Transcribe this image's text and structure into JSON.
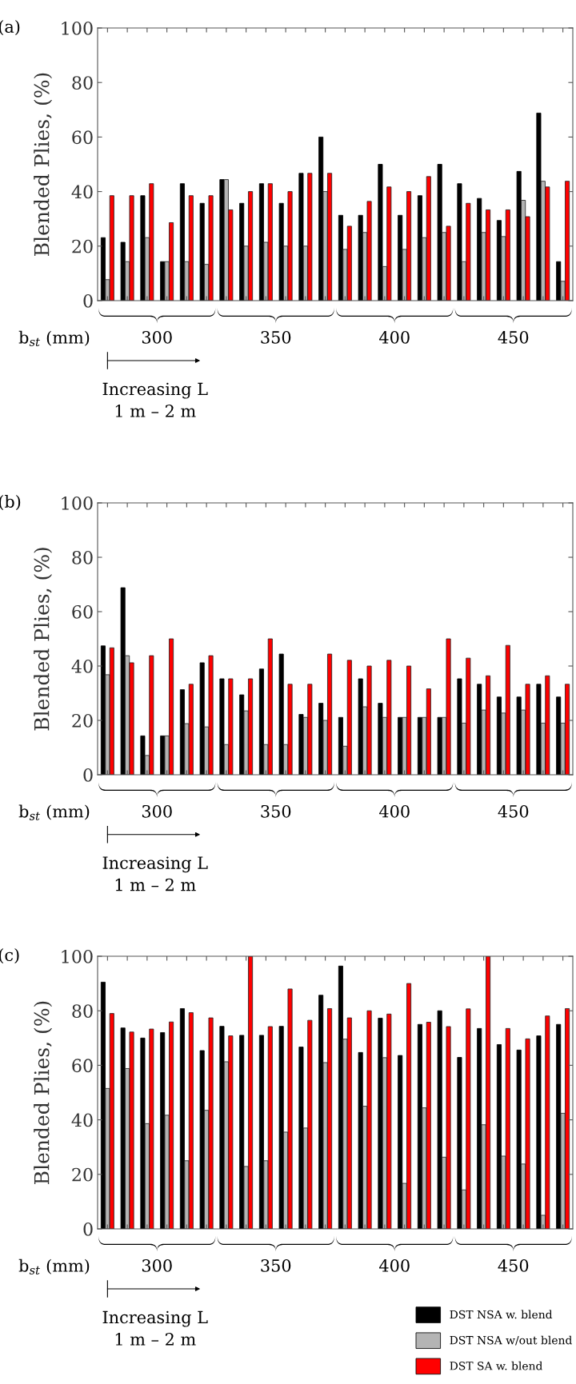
{
  "chart_data": [
    {
      "type": "bar",
      "title": "(a)",
      "ylabel": "Blended Plies, (%)",
      "categories": [
        null,
        null,
        null,
        null,
        null,
        null,
        null,
        null,
        null,
        null,
        null,
        null,
        null,
        null,
        null,
        null,
        null,
        null,
        null,
        null,
        null,
        null,
        null,
        null
      ],
      "series": [
        {
          "color": "#000000",
          "values": [
            23.1,
            21.4,
            38.5,
            14.3,
            42.9,
            35.7,
            44.4,
            35.7,
            42.9,
            35.7,
            46.7,
            60,
            31.3,
            31.3,
            50,
            31.3,
            38.5,
            50,
            42.9,
            37.5,
            29.4,
            47.4,
            68.8,
            14.3
          ]
        },
        {
          "color": "#b4b4b4",
          "values": [
            7.7,
            14.3,
            23.1,
            14.3,
            14.3,
            13.3,
            44.4,
            20,
            21.4,
            20,
            20,
            40,
            18.8,
            25,
            12.5,
            18.8,
            23.1,
            25,
            14.3,
            25,
            23.5,
            36.8,
            43.8,
            7.1
          ]
        },
        {
          "color": "#ff0000",
          "values": [
            38.5,
            38.5,
            42.9,
            28.6,
            38.5,
            38.5,
            33.3,
            40,
            42.9,
            40,
            46.7,
            46.7,
            27.3,
            36.4,
            41.7,
            40,
            45.5,
            27.3,
            35.7,
            33.3,
            33.3,
            30.8,
            41.7,
            43.8
          ]
        }
      ],
      "ylim": [
        0,
        100
      ],
      "yticks": [
        0,
        20,
        40,
        60,
        80,
        100
      ],
      "tick_labels": "y",
      "grid": false,
      "legend": false,
      "annotations": [
        "b$_{st}$ (mm)",
        "300",
        "350",
        "400",
        "450",
        "Increasing L",
        "1 m – 2 m"
      ]
    },
    {
      "type": "bar",
      "title": "(b)",
      "ylabel": "Blended Plies, (%)",
      "categories": [
        null,
        null,
        null,
        null,
        null,
        null,
        null,
        null,
        null,
        null,
        null,
        null,
        null,
        null,
        null,
        null,
        null,
        null,
        null,
        null,
        null,
        null,
        null,
        null
      ],
      "series": [
        {
          "color": "#000000",
          "values": [
            47.4,
            68.8,
            14.3,
            14.3,
            31.3,
            41.2,
            35.3,
            29.4,
            38.9,
            44.4,
            22.2,
            26.3,
            21.1,
            35.3,
            26.3,
            21.1,
            21.1,
            21.1,
            35.3,
            33.3,
            28.6,
            28.6,
            33.3,
            28.6
          ]
        },
        {
          "color": "#b4b4b4",
          "values": [
            36.8,
            43.8,
            7.1,
            14.3,
            18.8,
            17.6,
            11.1,
            23.5,
            11.1,
            11.1,
            21.1,
            20,
            10.5,
            25,
            21.1,
            21.1,
            21.1,
            21.1,
            19,
            23.8,
            22.7,
            23.8,
            19,
            19
          ]
        },
        {
          "color": "#ff0000",
          "values": [
            46.7,
            41.2,
            43.8,
            50,
            33.3,
            43.8,
            35.3,
            35.3,
            50,
            33.3,
            33.3,
            44.4,
            42.1,
            40,
            42.1,
            40,
            31.6,
            50,
            42.9,
            36.4,
            47.6,
            33.3,
            36.4,
            33.3
          ]
        }
      ],
      "ylim": [
        0,
        100
      ],
      "yticks": [
        0,
        20,
        40,
        60,
        80,
        100
      ],
      "tick_labels": "y",
      "grid": false,
      "legend": false,
      "annotations": [
        "b$_{st}$ (mm)",
        "300",
        "350",
        "400",
        "450",
        "Increasing L",
        "1 m – 2 m"
      ]
    },
    {
      "type": "bar",
      "title": "(c)",
      "ylabel": "Blended Plies, (%)",
      "categories": [
        null,
        null,
        null,
        null,
        null,
        null,
        null,
        null,
        null,
        null,
        null,
        null,
        null,
        null,
        null,
        null,
        null,
        null,
        null,
        null,
        null,
        null,
        null,
        null
      ],
      "series": [
        {
          "name": "DST NSA w. blend",
          "color": "#000000",
          "values": [
            90.5,
            73.7,
            70,
            72,
            80.8,
            65.4,
            74.3,
            71,
            71,
            74.3,
            66.7,
            85.7,
            96.4,
            64.7,
            77.3,
            63.6,
            75,
            80,
            62.9,
            73.5,
            67.6,
            65.6,
            70.8,
            75
          ]
        },
        {
          "name": "DST NSA w/out blend",
          "color": "#b4b4b4",
          "values": [
            51.5,
            58.8,
            38.6,
            41.7,
            25,
            43.5,
            61.3,
            22.9,
            25,
            35.5,
            37,
            61,
            69.6,
            45,
            62.8,
            16.7,
            44.4,
            26.3,
            14.3,
            38.2,
            26.7,
            23.8,
            5,
            42.4
          ]
        },
        {
          "name": "DST SA w. blend",
          "color": "#ff0000",
          "values": [
            79,
            72.2,
            73.3,
            75.9,
            79.3,
            77.4,
            70.8,
            100,
            74.2,
            88,
            76.5,
            80.8,
            77.4,
            80,
            78.8,
            90,
            75.8,
            74.2,
            80.7,
            100,
            73.5,
            69.7,
            78.1,
            80.8
          ]
        }
      ],
      "ylim": [
        0,
        100
      ],
      "yticks": [
        0,
        20,
        40,
        60,
        80,
        100
      ],
      "tick_labels": "y",
      "grid": false,
      "legend": "bottom right",
      "annotations": [
        "b$_{st}$ (mm)",
        "300",
        "350",
        "400",
        "450",
        "Increasing L",
        "1 m – 2 m"
      ]
    }
  ]
}
